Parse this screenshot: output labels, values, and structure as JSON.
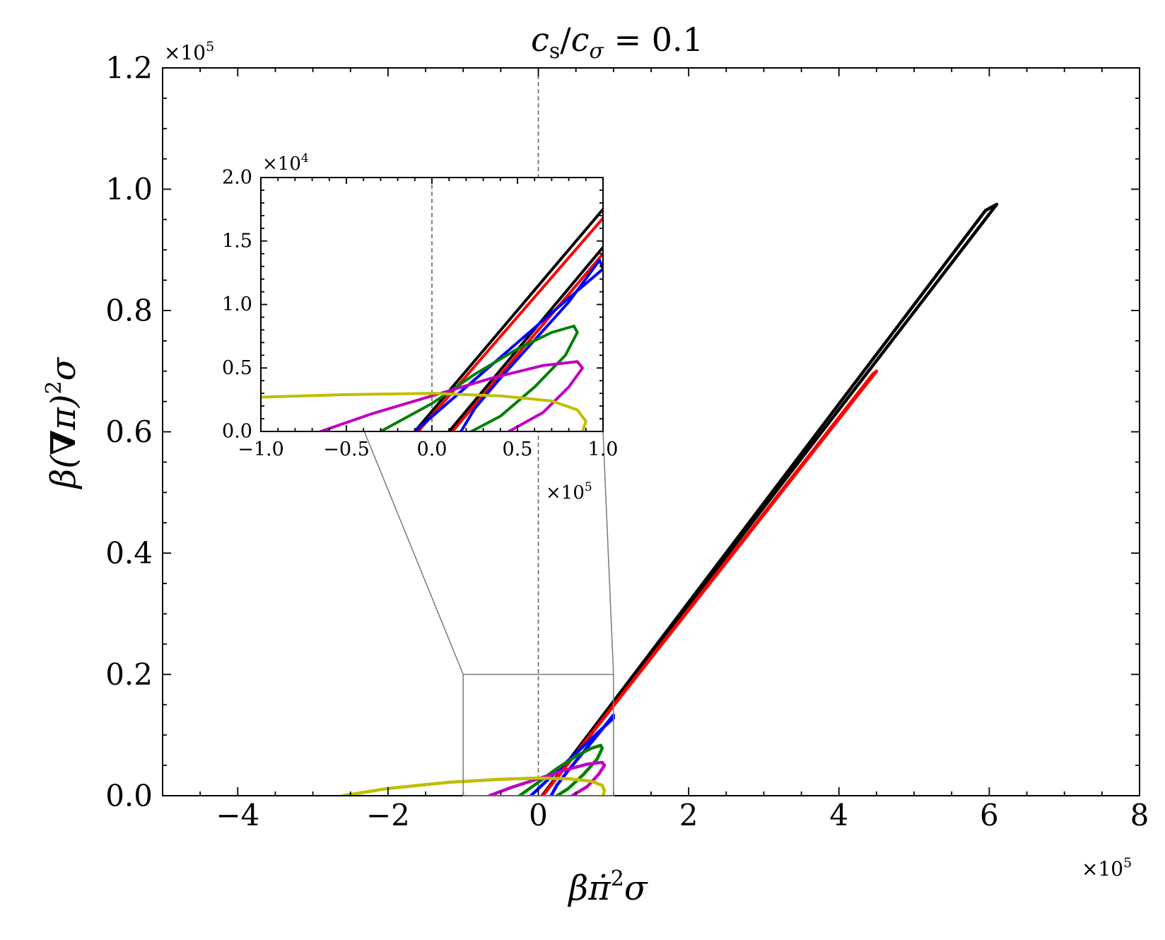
{
  "chart_data": [
    {
      "id": "main",
      "type": "line",
      "title": "c_s/c_σ = 0.1",
      "title_parts": {
        "c": "c",
        "s": "s",
        "slash": "/",
        "c2": "c",
        "sigma": "σ",
        "eq": " = 0.1"
      },
      "xlabel_parts": {
        "beta": "β",
        "pi": "π̇",
        "sup": "2",
        "sigma": "σ"
      },
      "ylabel_parts": {
        "beta": "β(",
        "nabla": "∇",
        "pi": "π)",
        "sup": "2",
        "sigma": "σ"
      },
      "x_scale": {
        "times": "×10",
        "exp": "5"
      },
      "y_scale": {
        "times": "×10",
        "exp": "5"
      },
      "xlim": [
        -5,
        8
      ],
      "ylim": [
        0,
        1.2
      ],
      "xticks": [
        -4,
        -2,
        0,
        2,
        4,
        6,
        8
      ],
      "xtick_labels": [
        "−4",
        "−2",
        "0",
        "2",
        "4",
        "6",
        "8"
      ],
      "yticks": [
        0,
        0.2,
        0.4,
        0.6,
        0.8,
        1.0,
        1.2
      ],
      "ytick_labels": [
        "0.0",
        "0.2",
        "0.4",
        "0.6",
        "0.8",
        "1.0",
        "1.2"
      ],
      "vline_x": 0,
      "zoom_box": {
        "x": [
          -1,
          1
        ],
        "y": [
          0,
          0.2
        ]
      },
      "series": [
        {
          "name": "black",
          "color": "#000000",
          "x": [
            0.05,
            6.1,
            5.95,
            0.05
          ],
          "y": [
            0.0,
            0.975,
            0.965,
            0.0
          ]
        },
        {
          "name": "red",
          "color": "#ff0000",
          "x": [
            0.06,
            4.5,
            4.45,
            0.06
          ],
          "y": [
            0.0,
            0.7,
            0.695,
            0.0
          ]
        },
        {
          "name": "blue",
          "color": "#0000ff",
          "x": [
            -0.1,
            0.2,
            0.5,
            0.8,
            1.0,
            1.0,
            0.8,
            0.6,
            0.4,
            0.25,
            0.17
          ],
          "y": [
            0.0,
            0.035,
            0.07,
            0.105,
            0.128,
            0.133,
            0.102,
            0.072,
            0.042,
            0.018,
            0.0
          ]
        },
        {
          "name": "green",
          "color": "#008000",
          "x": [
            -0.25,
            0.0,
            0.25,
            0.5,
            0.7,
            0.83,
            0.85,
            0.78,
            0.6,
            0.4,
            0.25
          ],
          "y": [
            0.0,
            0.022,
            0.045,
            0.065,
            0.078,
            0.083,
            0.078,
            0.06,
            0.035,
            0.012,
            0.0
          ]
        },
        {
          "name": "magenta",
          "color": "#c000c0",
          "x": [
            -0.65,
            -0.35,
            0.0,
            0.35,
            0.65,
            0.85,
            0.88,
            0.8,
            0.65,
            0.45
          ],
          "y": [
            0.0,
            0.014,
            0.028,
            0.042,
            0.052,
            0.055,
            0.05,
            0.035,
            0.015,
            0.0
          ]
        },
        {
          "name": "yellow",
          "color": "#bfbf00",
          "x": [
            -2.6,
            -2.0,
            -1.2,
            -0.5,
            0.0,
            0.4,
            0.7,
            0.85,
            0.88,
            0.86
          ],
          "y": [
            0.0,
            0.012,
            0.022,
            0.027,
            0.029,
            0.028,
            0.024,
            0.017,
            0.008,
            0.0
          ]
        }
      ]
    },
    {
      "id": "inset",
      "type": "line",
      "x_scale": {
        "times": "×10",
        "exp": "5"
      },
      "y_scale": {
        "times": "×10",
        "exp": "4"
      },
      "xlim": [
        -1.0,
        1.0
      ],
      "ylim": [
        0.0,
        2.0
      ],
      "xticks": [
        -1.0,
        -0.5,
        0.0,
        0.5,
        1.0
      ],
      "xtick_labels": [
        "−1.0",
        "−0.5",
        "0.0",
        "0.5",
        "1.0"
      ],
      "yticks": [
        0.0,
        0.5,
        1.0,
        1.5,
        2.0
      ],
      "ytick_labels": [
        "0.0",
        "0.5",
        "1.0",
        "1.5",
        "2.0"
      ],
      "vline_x": 0.0,
      "series": [
        {
          "name": "black",
          "color": "#000000",
          "x": [
            -0.1,
            1.0,
            null,
            0.1,
            1.0
          ],
          "y": [
            0.0,
            1.75,
            null,
            0.0,
            1.45
          ]
        },
        {
          "name": "red",
          "color": "#ff0000",
          "x": [
            -0.08,
            1.0,
            null,
            0.12,
            1.0
          ],
          "y": [
            0.0,
            1.68,
            null,
            0.0,
            1.4
          ]
        },
        {
          "name": "blue",
          "color": "#0000ff",
          "x": [
            -0.1,
            0.2,
            0.5,
            0.8,
            1.0,
            0.98,
            0.8,
            0.6,
            0.4,
            0.25,
            0.17
          ],
          "y": [
            0.0,
            0.35,
            0.7,
            1.05,
            1.28,
            1.35,
            1.02,
            0.72,
            0.42,
            0.18,
            0.0
          ]
        },
        {
          "name": "green",
          "color": "#008000",
          "x": [
            -0.3,
            0.0,
            0.25,
            0.5,
            0.7,
            0.83,
            0.85,
            0.78,
            0.6,
            0.4,
            0.23
          ],
          "y": [
            0.0,
            0.22,
            0.45,
            0.65,
            0.78,
            0.83,
            0.78,
            0.6,
            0.35,
            0.12,
            0.0
          ]
        },
        {
          "name": "magenta",
          "color": "#c000c0",
          "x": [
            -0.65,
            -0.35,
            0.0,
            0.35,
            0.65,
            0.85,
            0.88,
            0.8,
            0.65,
            0.45
          ],
          "y": [
            0.0,
            0.14,
            0.28,
            0.42,
            0.52,
            0.55,
            0.5,
            0.35,
            0.15,
            0.0
          ]
        },
        {
          "name": "yellow",
          "color": "#bfbf00",
          "x": [
            -1.0,
            -0.5,
            0.0,
            0.4,
            0.7,
            0.85,
            0.9,
            0.88
          ],
          "y": [
            0.27,
            0.29,
            0.3,
            0.28,
            0.24,
            0.17,
            0.08,
            0.0
          ]
        }
      ]
    }
  ]
}
